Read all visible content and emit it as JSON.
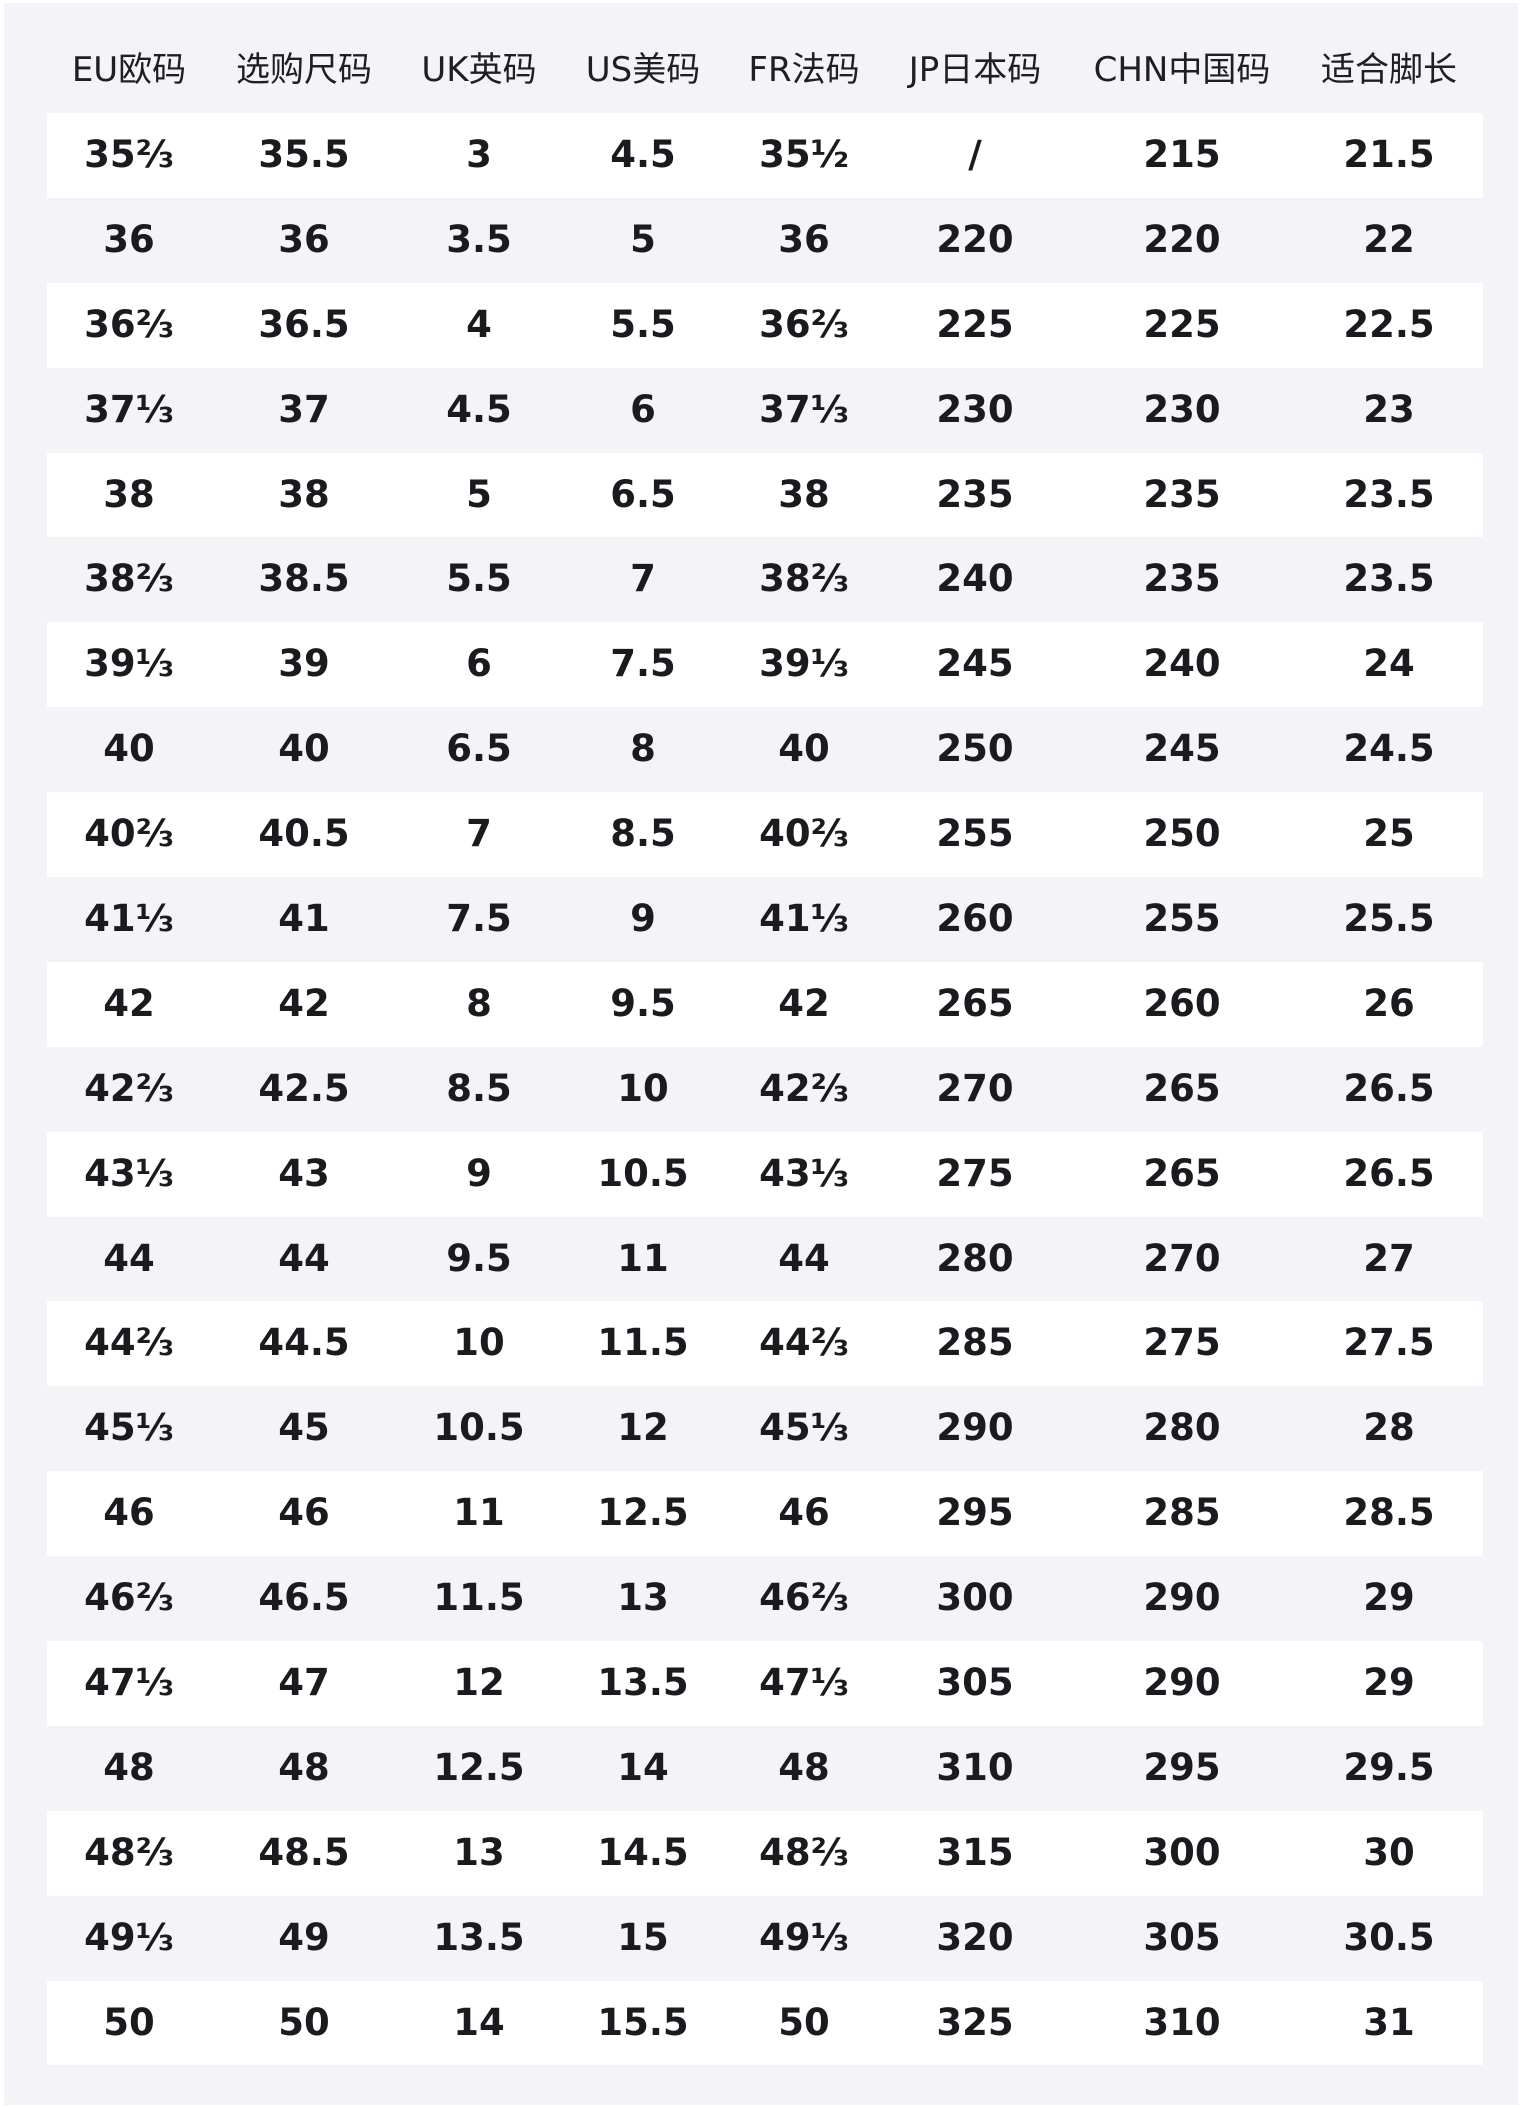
{
  "columns": [
    "EU欧码",
    "选购尺码",
    "UK英码",
    "US美码",
    "FR法码",
    "JP日本码",
    "CHN中国码",
    "适合脚长"
  ],
  "rows": [
    [
      "35⅔",
      "35.5",
      "3",
      "4.5",
      "35½",
      "/",
      "215",
      "21.5"
    ],
    [
      "36",
      "36",
      "3.5",
      "5",
      "36",
      "220",
      "220",
      "22"
    ],
    [
      "36⅔",
      "36.5",
      "4",
      "5.5",
      "36⅔",
      "225",
      "225",
      "22.5"
    ],
    [
      "37⅓",
      "37",
      "4.5",
      "6",
      "37⅓",
      "230",
      "230",
      "23"
    ],
    [
      "38",
      "38",
      "5",
      "6.5",
      "38",
      "235",
      "235",
      "23.5"
    ],
    [
      "38⅔",
      "38.5",
      "5.5",
      "7",
      "38⅔",
      "240",
      "235",
      "23.5"
    ],
    [
      "39⅓",
      "39",
      "6",
      "7.5",
      "39⅓",
      "245",
      "240",
      "24"
    ],
    [
      "40",
      "40",
      "6.5",
      "8",
      "40",
      "250",
      "245",
      "24.5"
    ],
    [
      "40⅔",
      "40.5",
      "7",
      "8.5",
      "40⅔",
      "255",
      "250",
      "25"
    ],
    [
      "41⅓",
      "41",
      "7.5",
      "9",
      "41⅓",
      "260",
      "255",
      "25.5"
    ],
    [
      "42",
      "42",
      "8",
      "9.5",
      "42",
      "265",
      "260",
      "26"
    ],
    [
      "42⅔",
      "42.5",
      "8.5",
      "10",
      "42⅔",
      "270",
      "265",
      "26.5"
    ],
    [
      "43⅓",
      "43",
      "9",
      "10.5",
      "43⅓",
      "275",
      "265",
      "26.5"
    ],
    [
      "44",
      "44",
      "9.5",
      "11",
      "44",
      "280",
      "270",
      "27"
    ],
    [
      "44⅔",
      "44.5",
      "10",
      "11.5",
      "44⅔",
      "285",
      "275",
      "27.5"
    ],
    [
      "45⅓",
      "45",
      "10.5",
      "12",
      "45⅓",
      "290",
      "280",
      "28"
    ],
    [
      "46",
      "46",
      "11",
      "12.5",
      "46",
      "295",
      "285",
      "28.5"
    ],
    [
      "46⅔",
      "46.5",
      "11.5",
      "13",
      "46⅔",
      "300",
      "290",
      "29"
    ],
    [
      "47⅓",
      "47",
      "12",
      "13.5",
      "47⅓",
      "305",
      "290",
      "29"
    ],
    [
      "48",
      "48",
      "12.5",
      "14",
      "48",
      "310",
      "295",
      "29.5"
    ],
    [
      "48⅔",
      "48.5",
      "13",
      "14.5",
      "48⅔",
      "315",
      "300",
      "30"
    ],
    [
      "49⅓",
      "49",
      "13.5",
      "15",
      "49⅓",
      "320",
      "305",
      "30.5"
    ],
    [
      "50",
      "50",
      "14",
      "15.5",
      "50",
      "325",
      "310",
      "31"
    ]
  ],
  "colors": {
    "background": "#f3f3f8",
    "row_alt": "#ffffff",
    "text": "#1a1a1f"
  }
}
